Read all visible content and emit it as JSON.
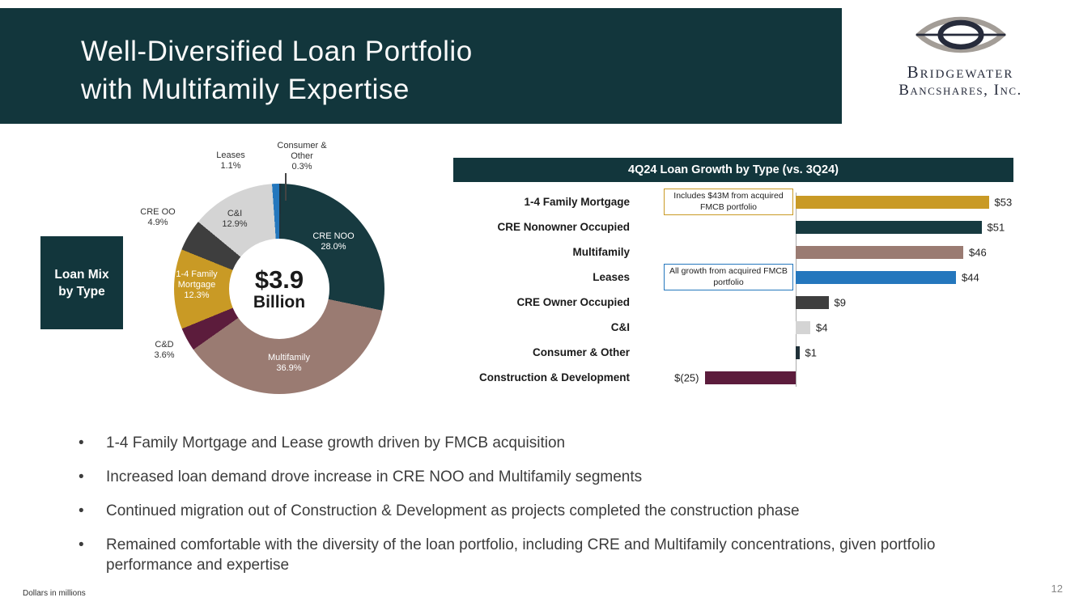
{
  "header": {
    "title_line1": "Well-Diversified Loan Portfolio",
    "title_line2": "with Multifamily Expertise",
    "logo_line1": "Bridgewater",
    "logo_line2": "Bancshares, Inc."
  },
  "loan_mix_box": {
    "line1": "Loan Mix",
    "line2": "by Type"
  },
  "colors": {
    "brand_teal": "#12363C",
    "gold": "#C99A25",
    "mauve": "#9A7B72",
    "maroon": "#5C1C3C",
    "blue": "#2477BD",
    "dark_gray": "#3E3E3E",
    "light_gray": "#D4D4D4"
  },
  "chart_data": [
    {
      "type": "pie",
      "title": "Loan Mix by Type",
      "center_value": "$3.9",
      "center_unit": "Billion",
      "segments": [
        {
          "label": "Consumer & Other",
          "pct": 0.3,
          "pct_label": "0.3%",
          "color": "#1F3038",
          "label_placement": "outside"
        },
        {
          "label": "CRE NOO",
          "pct": 28.0,
          "pct_label": "28.0%",
          "color": "#173A40",
          "label_placement": "inside"
        },
        {
          "label": "Multifamily",
          "pct": 36.9,
          "pct_label": "36.9%",
          "color": "#9A7B72",
          "label_placement": "inside"
        },
        {
          "label": "C&D",
          "pct": 3.6,
          "pct_label": "3.6%",
          "color": "#5C1C3C",
          "label_placement": "outside"
        },
        {
          "label": "1-4 Family Mortgage",
          "pct": 12.3,
          "pct_label": "12.3%",
          "color": "#C99A25",
          "label_placement": "inside"
        },
        {
          "label": "CRE OO",
          "pct": 4.9,
          "pct_label": "4.9%",
          "color": "#3E3E3E",
          "label_placement": "outside"
        },
        {
          "label": "C&I",
          "pct": 12.9,
          "pct_label": "12.9%",
          "color": "#D4D4D4",
          "label_placement": "inside"
        },
        {
          "label": "Leases",
          "pct": 1.1,
          "pct_label": "1.1%",
          "color": "#2477BD",
          "label_placement": "outside"
        }
      ]
    },
    {
      "type": "bar",
      "orientation": "horizontal",
      "title": "4Q24 Loan Growth by Type (vs. 3Q24)",
      "categories": [
        "1-4 Family Mortgage",
        "CRE Nonowner Occupied",
        "Multifamily",
        "Leases",
        "CRE Owner Occupied",
        "C&I",
        "Consumer & Other",
        "Construction & Development"
      ],
      "values": [
        53,
        51,
        46,
        44,
        9,
        4,
        1,
        -25
      ],
      "value_labels": [
        "$53",
        "$51",
        "$46",
        "$44",
        "$9",
        "$4",
        "$1",
        "$(25)"
      ],
      "colors": [
        "#C99A25",
        "#173A40",
        "#9A7B72",
        "#2477BD",
        "#3E3E3E",
        "#D4D4D4",
        "#1F3038",
        "#5C1C3C"
      ],
      "annotations": [
        {
          "row": 0,
          "text": "Includes $43M from acquired FMCB portfolio",
          "border_color": "#C99A25"
        },
        {
          "row": 3,
          "text": "All growth from acquired FMCB portfolio",
          "border_color": "#2477BD"
        }
      ]
    }
  ],
  "bullets": [
    "1-4 Family Mortgage and Lease growth driven by FMCB acquisition",
    "Increased loan demand drove increase in CRE NOO and Multifamily segments",
    "Continued migration out of Construction & Development as projects completed the construction phase",
    "Remained comfortable with the diversity of the loan portfolio, including CRE and Multifamily concentrations, given portfolio performance and expertise"
  ],
  "footer": {
    "note": "Dollars in millions",
    "page": "12"
  }
}
